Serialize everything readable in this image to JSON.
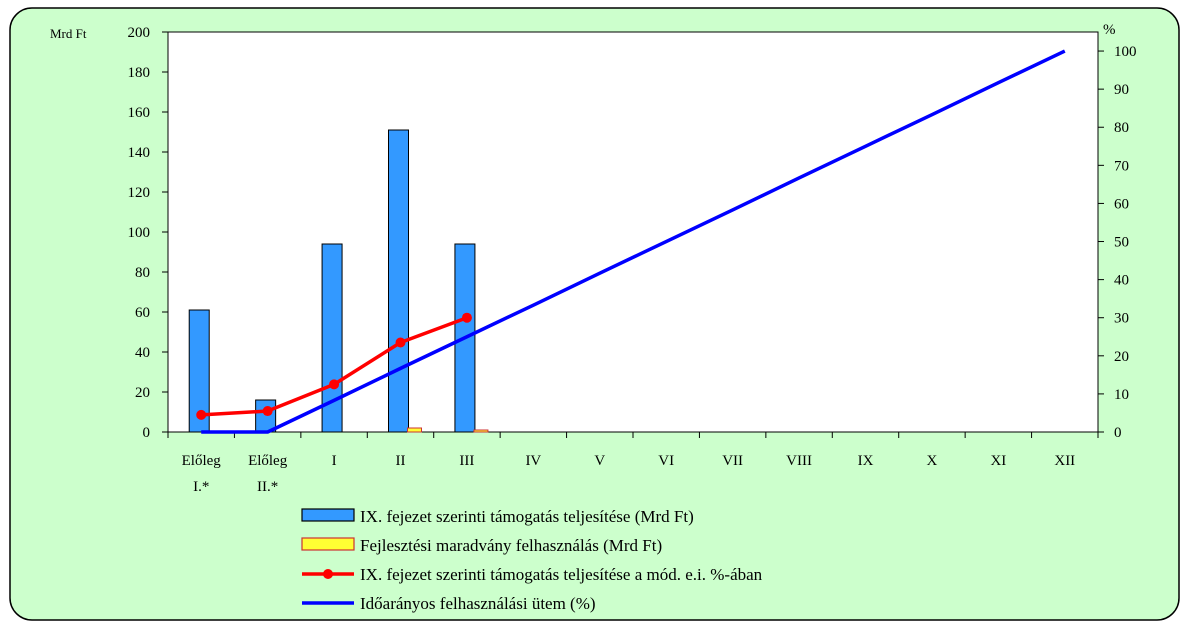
{
  "chart_data": {
    "type": "bar",
    "left_axis_unit": "Mrd Ft",
    "right_axis_unit": "%",
    "categories": [
      [
        "Előleg",
        "I.*"
      ],
      [
        "Előleg",
        "II.*"
      ],
      [
        "I"
      ],
      [
        "II"
      ],
      [
        "III"
      ],
      [
        "IV"
      ],
      [
        "V"
      ],
      [
        "VI"
      ],
      [
        "VII"
      ],
      [
        "VIII"
      ],
      [
        "IX"
      ],
      [
        "X"
      ],
      [
        "XI"
      ],
      [
        "XII"
      ]
    ],
    "ylim_left": [
      0,
      200
    ],
    "yticks_left": [
      0,
      20,
      40,
      60,
      80,
      100,
      120,
      140,
      160,
      180,
      200
    ],
    "ylim_right": [
      0,
      105
    ],
    "yticks_right": [
      0,
      10,
      20,
      30,
      40,
      50,
      60,
      70,
      80,
      90,
      100
    ],
    "grid": false,
    "legend_position": "bottom",
    "series": [
      {
        "name": "IX. fejezet szerinti támogatás teljesítése (Mrd Ft)",
        "kind": "bar",
        "axis": "left",
        "color": "#3399ff",
        "values": [
          61,
          16,
          94,
          151,
          94,
          null,
          null,
          null,
          null,
          null,
          null,
          null,
          null,
          null
        ]
      },
      {
        "name": "Fejlesztési maradvány felhasználás (Mrd Ft)",
        "kind": "bar",
        "axis": "left",
        "color": "#ffff33",
        "values": [
          0,
          0,
          0,
          2,
          1,
          null,
          null,
          null,
          null,
          null,
          null,
          null,
          null,
          null
        ]
      },
      {
        "name": "IX. fejezet szerinti támogatás teljesítése a mód. e.i. %-ában",
        "kind": "line",
        "axis": "right",
        "color": "#ff0000",
        "marker": "circle",
        "values": [
          4.5,
          5.5,
          12.5,
          23.5,
          30,
          null,
          null,
          null,
          null,
          null,
          null,
          null,
          null,
          null
        ]
      },
      {
        "name": "Időarányos felhasználási ütem (%)",
        "kind": "line",
        "axis": "right",
        "color": "#0000ff",
        "marker": "none",
        "values": [
          0,
          0,
          8.3,
          16.7,
          25,
          33.3,
          41.7,
          50,
          58.3,
          66.7,
          75,
          83.3,
          91.7,
          100
        ]
      }
    ]
  }
}
